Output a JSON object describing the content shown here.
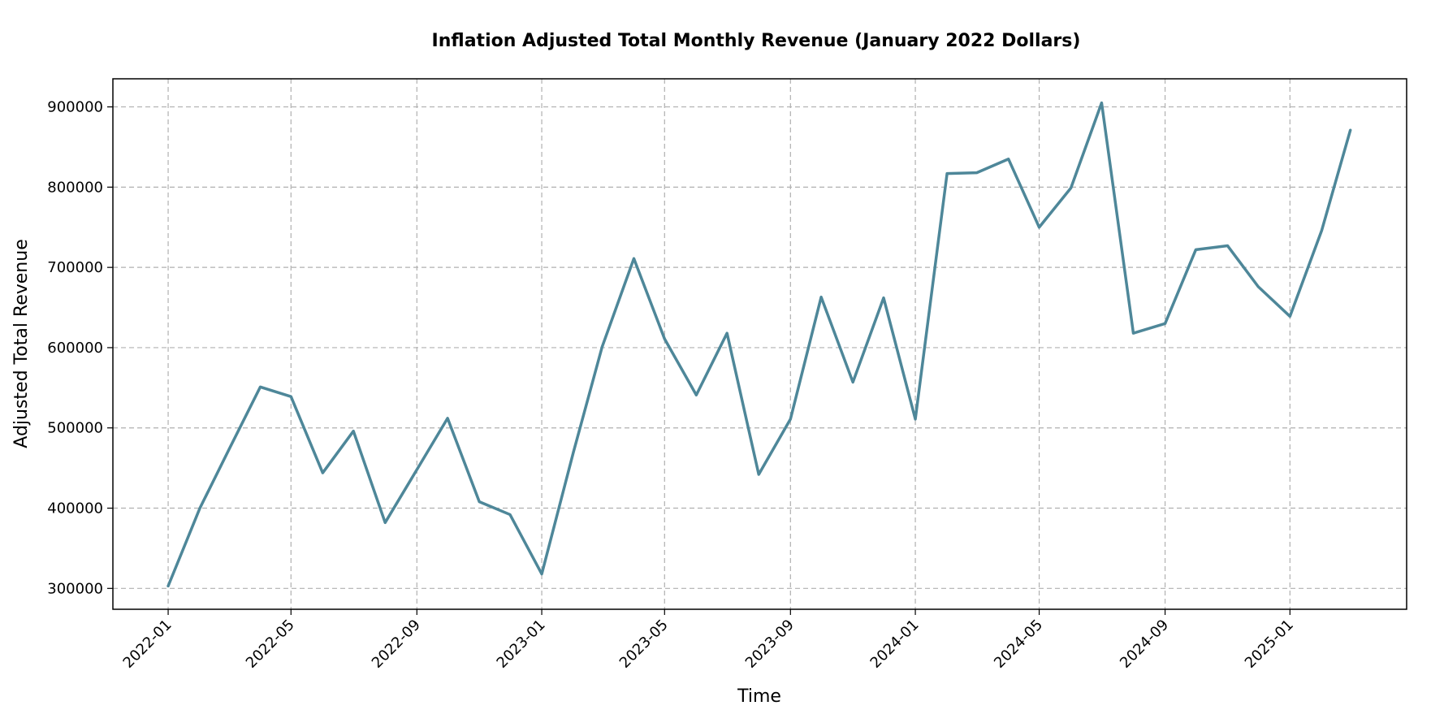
{
  "chart_data": {
    "type": "line",
    "title": "Inflation Adjusted Total Monthly Revenue (January 2022 Dollars)",
    "xlabel": "Time",
    "ylabel": "Adjusted Total Revenue",
    "x_ticks": [
      "2022-01",
      "2022-05",
      "2022-09",
      "2023-01",
      "2023-05",
      "2023-09",
      "2024-01",
      "2024-05",
      "2024-09",
      "2025-01"
    ],
    "y_ticks": [
      "300000",
      "400000",
      "500000",
      "600000",
      "700000",
      "800000",
      "900000"
    ],
    "ylim": [
      274000,
      935000
    ],
    "xlim": [
      "2021-11-08",
      "2025-04-25"
    ],
    "grid": true,
    "line_color": "#4e8799",
    "x": [
      "2022-01",
      "2022-02",
      "2022-03",
      "2022-04",
      "2022-05",
      "2022-06",
      "2022-07",
      "2022-08",
      "2022-09",
      "2022-10",
      "2022-11",
      "2022-12",
      "2023-01",
      "2023-02",
      "2023-03",
      "2023-04",
      "2023-05",
      "2023-06",
      "2023-07",
      "2023-08",
      "2023-09",
      "2023-10",
      "2023-11",
      "2023-12",
      "2024-01",
      "2024-02",
      "2024-03",
      "2024-04",
      "2024-05",
      "2024-06",
      "2024-07",
      "2024-08",
      "2024-09",
      "2024-10",
      "2024-11",
      "2024-12",
      "2025-01",
      "2025-02",
      "2025-03"
    ],
    "values": [
      303000,
      400000,
      472000,
      551000,
      539000,
      444000,
      496000,
      382000,
      448000,
      512000,
      408000,
      392000,
      318000,
      470000,
      601000,
      711000,
      611000,
      541000,
      618000,
      442000,
      511000,
      663000,
      557000,
      662000,
      511000,
      817000,
      818000,
      835000,
      750000,
      799000,
      905000,
      618000,
      630000,
      722000,
      727000,
      676000,
      639000,
      746000,
      871000
    ]
  }
}
